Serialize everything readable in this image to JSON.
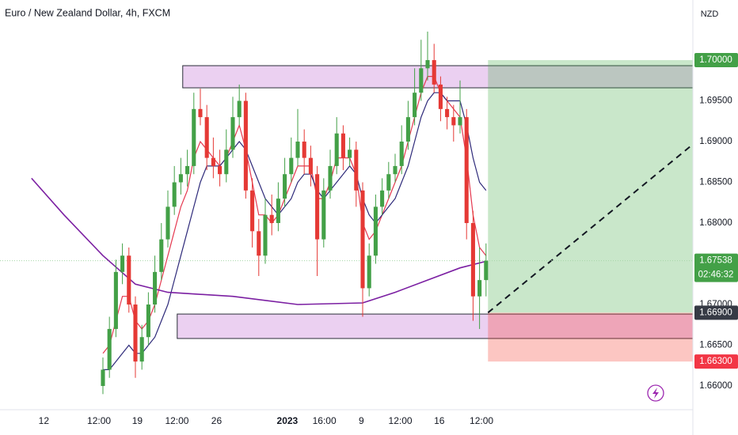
{
  "chart_data": {
    "type": "candlestick",
    "title": "Euro / New Zealand Dollar, 4h, FXCM",
    "currency": "NZD",
    "xlim": [
      -15.85,
      90.85
    ],
    "ylim": [
      1.65709,
      1.70738
    ],
    "xticks": [
      {
        "value": -9.1,
        "label": "12"
      },
      {
        "value": -0.6,
        "label": "12:00"
      },
      {
        "value": 5.3,
        "label": "19"
      },
      {
        "value": 11.4,
        "label": "12:00"
      },
      {
        "value": 17.5,
        "label": "26"
      },
      {
        "value": 28.4,
        "label": "2023"
      },
      {
        "value": 34.1,
        "label": "16:00"
      },
      {
        "value": 39.8,
        "label": "9"
      },
      {
        "value": 45.8,
        "label": "12:00"
      },
      {
        "value": 51.8,
        "label": "16"
      },
      {
        "value": 58.3,
        "label": "12:00"
      }
    ],
    "yticks": [
      {
        "value": 1.66,
        "label": "1.66000"
      },
      {
        "value": 1.665,
        "label": "1.66500"
      },
      {
        "value": 1.67,
        "label": "1.67000"
      },
      {
        "value": 1.68,
        "label": "1.68000"
      },
      {
        "value": 1.685,
        "label": "1.68500"
      },
      {
        "value": 1.69,
        "label": "1.69000"
      },
      {
        "value": 1.695,
        "label": "1.69500"
      }
    ],
    "up_color": "#43a047",
    "down_color": "#e53935",
    "candles": [
      [
        1.66,
        1.6635,
        1.659,
        1.662
      ],
      [
        1.662,
        1.6685,
        1.661,
        1.667
      ],
      [
        1.667,
        1.6755,
        1.666,
        1.674
      ],
      [
        1.674,
        1.6775,
        1.6725,
        1.676
      ],
      [
        1.676,
        1.677,
        1.669,
        1.67
      ],
      [
        1.67,
        1.671,
        1.661,
        1.663
      ],
      [
        1.663,
        1.6675,
        1.662,
        1.666
      ],
      [
        1.666,
        1.6715,
        1.665,
        1.67
      ],
      [
        1.67,
        1.676,
        1.669,
        1.674
      ],
      [
        1.674,
        1.68,
        1.673,
        1.678
      ],
      [
        1.678,
        1.684,
        1.677,
        1.682
      ],
      [
        1.682,
        1.687,
        1.681,
        1.685
      ],
      [
        1.685,
        1.688,
        1.6835,
        1.686
      ],
      [
        1.686,
        1.689,
        1.6845,
        1.687
      ],
      [
        1.687,
        1.696,
        1.686,
        1.694
      ],
      [
        1.694,
        1.6965,
        1.692,
        1.693
      ],
      [
        1.693,
        1.6945,
        1.6865,
        1.688
      ],
      [
        1.688,
        1.6905,
        1.6855,
        1.687
      ],
      [
        1.687,
        1.689,
        1.6845,
        1.686
      ],
      [
        1.686,
        1.6915,
        1.685,
        1.689
      ],
      [
        1.689,
        1.6955,
        1.688,
        1.693
      ],
      [
        1.693,
        1.697,
        1.692,
        1.695
      ],
      [
        1.695,
        1.696,
        1.683,
        1.684
      ],
      [
        1.684,
        1.6855,
        1.677,
        1.679
      ],
      [
        1.679,
        1.6805,
        1.6735,
        1.676
      ],
      [
        1.676,
        1.683,
        1.675,
        1.681
      ],
      [
        1.681,
        1.6835,
        1.6785,
        1.68
      ],
      [
        1.68,
        1.685,
        1.679,
        1.683
      ],
      [
        1.683,
        1.688,
        1.682,
        1.686
      ],
      [
        1.686,
        1.6905,
        1.685,
        1.688
      ],
      [
        1.688,
        1.694,
        1.687,
        1.69
      ],
      [
        1.69,
        1.6915,
        1.686,
        1.688
      ],
      [
        1.688,
        1.6895,
        1.6845,
        1.686
      ],
      [
        1.686,
        1.687,
        1.6735,
        1.678
      ],
      [
        1.678,
        1.6855,
        1.677,
        1.684
      ],
      [
        1.684,
        1.689,
        1.683,
        1.687
      ],
      [
        1.687,
        1.693,
        1.686,
        1.691
      ],
      [
        1.691,
        1.692,
        1.6865,
        1.688
      ],
      [
        1.688,
        1.6905,
        1.687,
        1.689
      ],
      [
        1.689,
        1.69,
        1.682,
        1.684
      ],
      [
        1.684,
        1.685,
        1.6685,
        1.672
      ],
      [
        1.672,
        1.6775,
        1.671,
        1.676
      ],
      [
        1.676,
        1.6835,
        1.675,
        1.682
      ],
      [
        1.682,
        1.6855,
        1.681,
        1.684
      ],
      [
        1.684,
        1.6875,
        1.683,
        1.686
      ],
      [
        1.686,
        1.6885,
        1.685,
        1.687
      ],
      [
        1.687,
        1.692,
        1.686,
        1.69
      ],
      [
        1.69,
        1.695,
        1.689,
        1.693
      ],
      [
        1.693,
        1.699,
        1.692,
        1.696
      ],
      [
        1.696,
        1.7025,
        1.695,
        1.699
      ],
      [
        1.699,
        1.7035,
        1.6975,
        1.7
      ],
      [
        1.7,
        1.702,
        1.696,
        1.697
      ],
      [
        1.697,
        1.698,
        1.6925,
        1.694
      ],
      [
        1.694,
        1.6955,
        1.6915,
        1.693
      ],
      [
        1.693,
        1.6945,
        1.69,
        1.692
      ],
      [
        1.692,
        1.6975,
        1.691,
        1.693
      ],
      [
        1.693,
        1.694,
        1.678,
        1.68
      ],
      [
        1.68,
        1.6815,
        1.668,
        1.671
      ],
      [
        1.671,
        1.677,
        1.667,
        1.673
      ],
      [
        1.673,
        1.6775,
        1.671,
        1.67538
      ]
    ],
    "series": [
      {
        "color": "#e53950",
        "values": [
          1.664,
          1.665,
          1.668,
          1.671,
          1.671,
          1.668,
          1.667,
          1.668,
          1.67,
          1.673,
          1.676,
          1.679,
          1.682,
          1.684,
          1.688,
          1.69,
          1.689,
          1.688,
          1.687,
          1.688,
          1.69,
          1.692,
          1.689,
          1.685,
          1.681,
          1.681,
          1.68,
          1.681,
          1.683,
          1.685,
          1.687,
          1.687,
          1.687,
          1.683,
          1.683,
          1.685,
          1.688,
          1.688,
          1.688,
          1.686,
          1.68,
          1.678,
          1.679,
          1.681,
          1.683,
          1.685,
          1.687,
          1.69,
          1.693,
          1.696,
          1.698,
          1.698,
          1.696,
          1.695,
          1.694,
          1.693,
          1.688,
          1.681,
          1.677,
          1.676
        ]
      },
      {
        "color": "#2e2a7a",
        "values": [
          1.662,
          1.662,
          1.663,
          1.664,
          1.665,
          1.664,
          1.664,
          1.665,
          1.666,
          1.668,
          1.67,
          1.673,
          1.676,
          1.679,
          1.682,
          1.685,
          1.687,
          1.687,
          1.687,
          1.688,
          1.689,
          1.69,
          1.689,
          1.687,
          1.685,
          1.683,
          1.682,
          1.681,
          1.682,
          1.683,
          1.685,
          1.686,
          1.686,
          1.684,
          1.683,
          1.684,
          1.685,
          1.686,
          1.687,
          1.686,
          1.683,
          1.681,
          1.68,
          1.681,
          1.682,
          1.683,
          1.685,
          1.687,
          1.69,
          1.693,
          1.695,
          1.696,
          1.696,
          1.695,
          1.695,
          1.695,
          1.692,
          1.688,
          1.685,
          1.684
        ]
      },
      {
        "color": "#7b1fa2",
        "x": [
          -11,
          -6,
          0,
          5,
          10,
          20,
          30,
          40,
          45,
          50,
          55,
          59
        ],
        "values": [
          1.6855,
          1.681,
          1.676,
          1.6725,
          1.6715,
          1.671,
          1.67,
          1.6702,
          1.6715,
          1.673,
          1.6745,
          1.6753
        ]
      }
    ],
    "zones": [
      {
        "x_start": 12.29,
        "top": 1.69932,
        "bottom": 1.6966
      },
      {
        "x_start": 11.44,
        "top": 1.66883,
        "bottom": 1.66583
      }
    ],
    "position": {
      "x_start": 59.3,
      "target": {
        "value": 1.7,
        "label": "1.70000"
      },
      "entry": {
        "value": 1.669,
        "label": "1.66900"
      },
      "stop": {
        "value": 1.663,
        "label": "1.66300"
      }
    },
    "last_price": {
      "value": 1.67538,
      "label": "1.67538"
    },
    "countdown": "02:46:32"
  }
}
